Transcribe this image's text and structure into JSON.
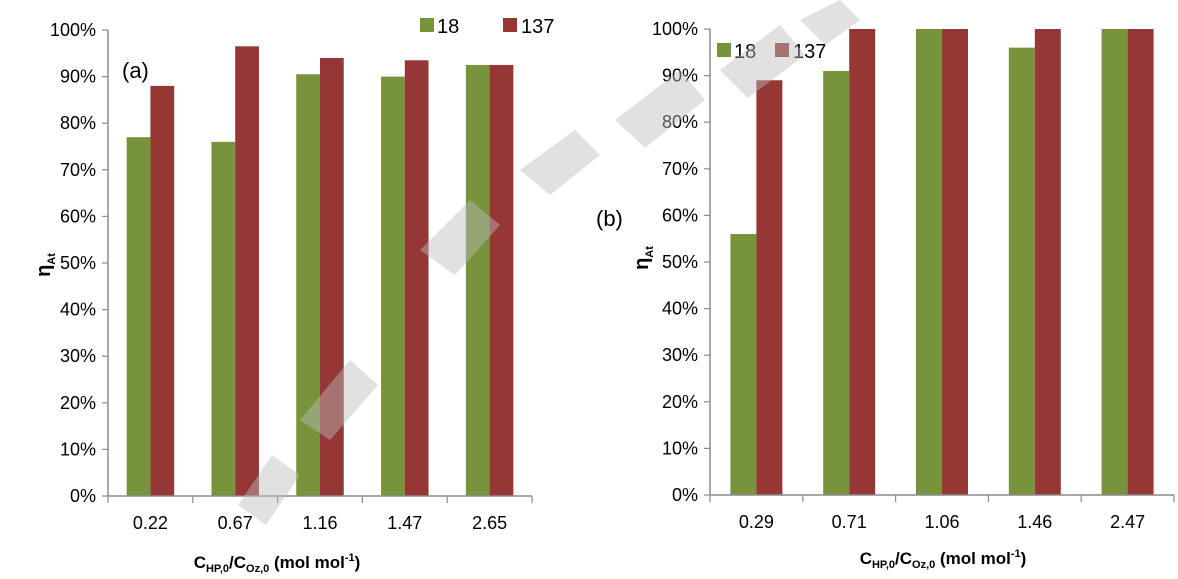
{
  "colors": {
    "series_18": "#77933c",
    "series_137": "#953735",
    "axis": "#8c8c8c"
  },
  "chart_data": [
    {
      "type": "bar",
      "panel_label": "(a)",
      "categories": [
        "0.22",
        "0.67",
        "1.16",
        "1.47",
        "2.65"
      ],
      "series": [
        {
          "name": "18",
          "values": [
            77,
            76,
            90.5,
            90,
            92.5
          ]
        },
        {
          "name": "137",
          "values": [
            88,
            96.5,
            94,
            93.5,
            92.5
          ]
        }
      ],
      "ylim": [
        0,
        100
      ],
      "yticks": [
        "0%",
        "10%",
        "20%",
        "30%",
        "40%",
        "50%",
        "60%",
        "70%",
        "80%",
        "90%",
        "100%"
      ],
      "ylabel": {
        "main": "η",
        "sub": "At"
      },
      "xlabel": {
        "c1": "C",
        "s1": "HP,0",
        "slash": "/C",
        "s2": "Oz,0",
        "units": " (mol mol",
        "sup": "-1",
        "close": ")"
      },
      "legend": "top-right",
      "grid": false
    },
    {
      "type": "bar",
      "panel_label": "(b)",
      "categories": [
        "0.29",
        "0.71",
        "1.06",
        "1.46",
        "2.47"
      ],
      "series": [
        {
          "name": "18",
          "values": [
            56,
            91,
            100,
            96,
            100
          ]
        },
        {
          "name": "137",
          "values": [
            89,
            100,
            100,
            100,
            100
          ]
        }
      ],
      "ylim": [
        0,
        100
      ],
      "yticks": [
        "0%",
        "10%",
        "20%",
        "30%",
        "40%",
        "50%",
        "60%",
        "70%",
        "80%",
        "90%",
        "100%"
      ],
      "ylabel": {
        "main": "η",
        "sub": "At"
      },
      "xlabel": {
        "c1": "C",
        "s1": "HP,0",
        "slash": "/C",
        "s2": "Oz,0",
        "units": " (mol mol",
        "sup": "-1",
        "close": ")"
      },
      "legend": "top-left",
      "grid": false
    }
  ]
}
